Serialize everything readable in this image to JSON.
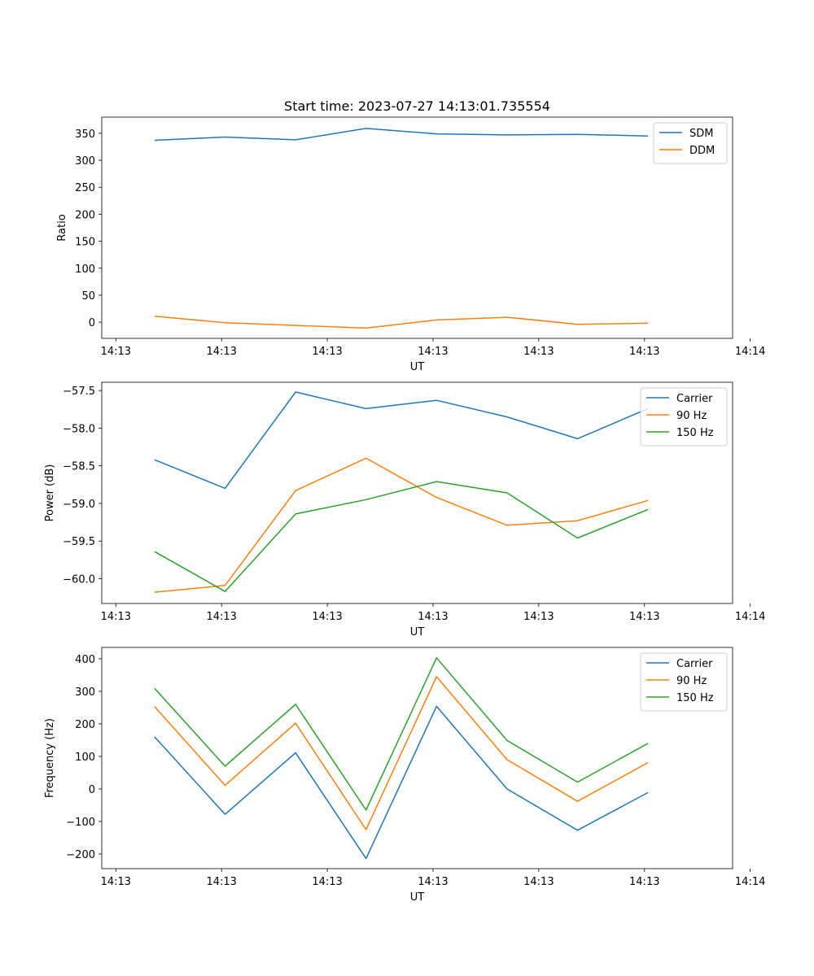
{
  "colors": {
    "c0": "#1f77b4",
    "c1": "#ff7f0e",
    "c2": "#2ca02c"
  },
  "chart_data": [
    {
      "type": "line",
      "title": "Start time: 2023-07-27 14:13:01.735554",
      "xlabel": "UT",
      "ylabel": "Ratio",
      "x": [
        1,
        2,
        3,
        4,
        5,
        6,
        7,
        8
      ],
      "xlim": [
        0.25,
        9.2
      ],
      "xticks": [
        0.45,
        1.95,
        3.45,
        4.95,
        6.45,
        7.95,
        9.45
      ],
      "xtick_labels": [
        "14:13",
        "14:13",
        "14:13",
        "14:13",
        "14:13",
        "14:13",
        "14:14"
      ],
      "ylim": [
        -30,
        380
      ],
      "yticks": [
        0,
        50,
        100,
        150,
        200,
        250,
        300,
        350
      ],
      "ytick_labels": [
        "0",
        "50",
        "100",
        "150",
        "200",
        "250",
        "300",
        "350"
      ],
      "legend": "top-right",
      "series": [
        {
          "name": "SDM",
          "color": "c0",
          "values": [
            337,
            343,
            338,
            359,
            349,
            347,
            348,
            345
          ]
        },
        {
          "name": "DDM",
          "color": "c1",
          "values": [
            11,
            -1,
            -6,
            -11,
            4,
            9,
            -4,
            -2
          ]
        }
      ]
    },
    {
      "type": "line",
      "title": "",
      "xlabel": "UT",
      "ylabel": "Power (dB)",
      "x": [
        1,
        2,
        3,
        4,
        5,
        6,
        7,
        8
      ],
      "xlim": [
        0.25,
        9.2
      ],
      "xticks": [
        0.45,
        1.95,
        3.45,
        4.95,
        6.45,
        7.95,
        9.45
      ],
      "xtick_labels": [
        "14:13",
        "14:13",
        "14:13",
        "14:13",
        "14:13",
        "14:13",
        "14:14"
      ],
      "ylim": [
        -60.33,
        -57.39
      ],
      "yticks": [
        -60.0,
        -59.5,
        -59.0,
        -58.5,
        -58.0,
        -57.5
      ],
      "ytick_labels": [
        "−60.0",
        "−59.5",
        "−59.0",
        "−58.5",
        "−58.0",
        "−57.5"
      ],
      "legend": "top-right",
      "series": [
        {
          "name": "Carrier",
          "color": "c0",
          "values": [
            -58.42,
            -58.8,
            -57.52,
            -57.74,
            -57.63,
            -57.85,
            -58.14,
            -57.74
          ]
        },
        {
          "name": "90 Hz",
          "color": "c1",
          "values": [
            -60.18,
            -60.09,
            -58.83,
            -58.4,
            -58.92,
            -59.29,
            -59.23,
            -58.96
          ]
        },
        {
          "name": "150 Hz",
          "color": "c2",
          "values": [
            -59.64,
            -60.17,
            -59.14,
            -58.95,
            -58.71,
            -58.86,
            -59.46,
            -59.08
          ]
        }
      ]
    },
    {
      "type": "line",
      "title": "",
      "xlabel": "UT",
      "ylabel": "Frequency (Hz)",
      "x": [
        1,
        2,
        3,
        4,
        5,
        6,
        7,
        8
      ],
      "xlim": [
        0.25,
        9.2
      ],
      "xticks": [
        0.45,
        1.95,
        3.45,
        4.95,
        6.45,
        7.95,
        9.45
      ],
      "xtick_labels": [
        "14:13",
        "14:13",
        "14:13",
        "14:13",
        "14:13",
        "14:13",
        "14:14"
      ],
      "ylim": [
        -245,
        435
      ],
      "yticks": [
        -200,
        -100,
        0,
        100,
        200,
        300,
        400
      ],
      "ytick_labels": [
        "−200",
        "−100",
        "0",
        "100",
        "200",
        "300",
        "400"
      ],
      "legend": "top-right",
      "series": [
        {
          "name": "Carrier",
          "color": "c0",
          "values": [
            160,
            -78,
            111,
            -214,
            254,
            0,
            -127,
            -11
          ]
        },
        {
          "name": "90 Hz",
          "color": "c1",
          "values": [
            253,
            11,
            202,
            -125,
            345,
            90,
            -38,
            81
          ]
        },
        {
          "name": "150 Hz",
          "color": "c2",
          "values": [
            309,
            70,
            260,
            -65,
            403,
            149,
            21,
            140
          ]
        }
      ]
    }
  ]
}
